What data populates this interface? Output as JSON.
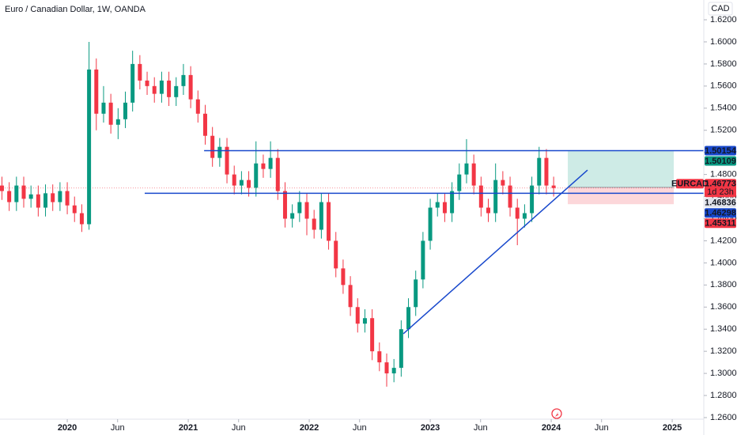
{
  "chart_data": {
    "type": "candlestick",
    "title": "Euro / Canadian Dollar, 1W, OANDA",
    "currency": "CAD",
    "up_color": "#089981",
    "down_color": "#f23645",
    "xlim": [
      2019.444,
      2025.261
    ],
    "ylim": [
      1.25856,
      1.6379
    ],
    "xticks": [
      2020,
      {
        "value": 2020.416,
        "label": "Jun"
      },
      2021,
      {
        "value": 2021.416,
        "label": "Jun"
      },
      2022,
      {
        "value": 2022.416,
        "label": "Jun"
      },
      2023,
      {
        "value": 2023.416,
        "label": "Jun"
      },
      2024,
      {
        "value": 2024.416,
        "label": "Jun"
      },
      2025
    ],
    "yticks": [
      {
        "value": 1.26,
        "label": "1.26000"
      },
      {
        "value": 1.28,
        "label": "1.28000"
      },
      {
        "value": 1.3,
        "label": "1.30000"
      },
      {
        "value": 1.32,
        "label": "1.32000"
      },
      {
        "value": 1.34,
        "label": "1.34000"
      },
      {
        "value": 1.36,
        "label": "1.36000"
      },
      {
        "value": 1.38,
        "label": "1.38000"
      },
      {
        "value": 1.4,
        "label": "1.40000"
      },
      {
        "value": 1.42,
        "label": "1.42000"
      },
      {
        "value": 1.44,
        "label": "1.44000"
      },
      {
        "value": 1.46,
        "label": "1.46000"
      },
      {
        "value": 1.48,
        "label": "1.48000"
      },
      {
        "value": 1.5,
        "label": "1.50000"
      },
      {
        "value": 1.52,
        "label": "1.52000"
      },
      {
        "value": 1.54,
        "label": "1.54000"
      },
      {
        "value": 1.56,
        "label": "1.56000"
      },
      {
        "value": 1.58,
        "label": "1.58000"
      },
      {
        "value": 1.6,
        "label": "1.60000"
      },
      {
        "value": 1.62,
        "label": "1.62000"
      }
    ],
    "x": [
      2019.46,
      2019.52,
      2019.58,
      2019.64,
      2019.7,
      2019.76,
      2019.82,
      2019.88,
      2019.94,
      2020.0,
      2020.06,
      2020.12,
      2020.18,
      2020.24,
      2020.3,
      2020.36,
      2020.42,
      2020.48,
      2020.54,
      2020.6,
      2020.66,
      2020.72,
      2020.78,
      2020.84,
      2020.9,
      2020.96,
      2021.02,
      2021.08,
      2021.14,
      2021.2,
      2021.26,
      2021.32,
      2021.38,
      2021.44,
      2021.5,
      2021.56,
      2021.62,
      2021.68,
      2021.74,
      2021.8,
      2021.86,
      2021.92,
      2021.98,
      2022.04,
      2022.1,
      2022.16,
      2022.22,
      2022.28,
      2022.34,
      2022.4,
      2022.46,
      2022.52,
      2022.58,
      2022.64,
      2022.7,
      2022.76,
      2022.82,
      2022.88,
      2022.94,
      2023.0,
      2023.06,
      2023.12,
      2023.18,
      2023.24,
      2023.3,
      2023.36,
      2023.42,
      2023.48,
      2023.54,
      2023.6,
      2023.66,
      2023.72,
      2023.78,
      2023.84,
      2023.9,
      2023.96,
      2024.02
    ],
    "open": [
      1.47,
      1.465,
      1.455,
      1.47,
      1.458,
      1.462,
      1.45,
      1.463,
      1.455,
      1.465,
      1.452,
      1.445,
      1.435,
      1.575,
      1.535,
      1.545,
      1.525,
      1.53,
      1.545,
      1.58,
      1.565,
      1.56,
      1.553,
      1.565,
      1.55,
      1.56,
      1.57,
      1.548,
      1.535,
      1.515,
      1.495,
      1.505,
      1.48,
      1.47,
      1.475,
      1.468,
      1.49,
      1.485,
      1.495,
      1.465,
      1.44,
      1.445,
      1.455,
      1.44,
      1.43,
      1.455,
      1.42,
      1.395,
      1.38,
      1.36,
      1.345,
      1.35,
      1.32,
      1.31,
      1.3,
      1.305,
      1.34,
      1.36,
      1.385,
      1.42,
      1.45,
      1.455,
      1.445,
      1.465,
      1.48,
      1.49,
      1.47,
      1.45,
      1.445,
      1.475,
      1.47,
      1.45,
      1.44,
      1.445,
      1.47,
      1.495,
      1.47
    ],
    "high": [
      1.478,
      1.473,
      1.478,
      1.478,
      1.47,
      1.47,
      1.471,
      1.471,
      1.473,
      1.473,
      1.46,
      1.453,
      1.6,
      1.585,
      1.56,
      1.553,
      1.54,
      1.555,
      1.592,
      1.588,
      1.573,
      1.568,
      1.573,
      1.573,
      1.568,
      1.58,
      1.578,
      1.556,
      1.543,
      1.523,
      1.513,
      1.513,
      1.488,
      1.483,
      1.483,
      1.51,
      1.498,
      1.51,
      1.503,
      1.473,
      1.453,
      1.465,
      1.463,
      1.448,
      1.463,
      1.463,
      1.428,
      1.403,
      1.388,
      1.368,
      1.358,
      1.358,
      1.328,
      1.318,
      1.313,
      1.348,
      1.368,
      1.393,
      1.428,
      1.458,
      1.463,
      1.463,
      1.473,
      1.49,
      1.512,
      1.498,
      1.478,
      1.458,
      1.49,
      1.483,
      1.478,
      1.458,
      1.453,
      1.478,
      1.505,
      1.503,
      1.478
    ],
    "low": [
      1.457,
      1.447,
      1.447,
      1.45,
      1.45,
      1.442,
      1.442,
      1.447,
      1.447,
      1.444,
      1.437,
      1.428,
      1.43,
      1.52,
      1.527,
      1.517,
      1.512,
      1.522,
      1.537,
      1.557,
      1.552,
      1.545,
      1.545,
      1.542,
      1.542,
      1.552,
      1.54,
      1.527,
      1.507,
      1.487,
      1.487,
      1.472,
      1.462,
      1.462,
      1.46,
      1.46,
      1.477,
      1.477,
      1.457,
      1.432,
      1.432,
      1.437,
      1.425,
      1.422,
      1.422,
      1.412,
      1.387,
      1.372,
      1.352,
      1.337,
      1.337,
      1.312,
      1.302,
      1.288,
      1.292,
      1.297,
      1.332,
      1.352,
      1.377,
      1.412,
      1.442,
      1.437,
      1.437,
      1.457,
      1.472,
      1.462,
      1.442,
      1.437,
      1.437,
      1.462,
      1.442,
      1.416,
      1.432,
      1.437,
      1.462,
      1.462,
      1.46
    ],
    "close": [
      1.465,
      1.455,
      1.47,
      1.458,
      1.462,
      1.45,
      1.463,
      1.455,
      1.465,
      1.452,
      1.445,
      1.435,
      1.575,
      1.535,
      1.545,
      1.525,
      1.53,
      1.545,
      1.58,
      1.565,
      1.56,
      1.553,
      1.565,
      1.55,
      1.56,
      1.57,
      1.548,
      1.535,
      1.515,
      1.495,
      1.505,
      1.48,
      1.47,
      1.475,
      1.468,
      1.49,
      1.485,
      1.495,
      1.465,
      1.44,
      1.445,
      1.455,
      1.44,
      1.43,
      1.455,
      1.42,
      1.395,
      1.38,
      1.36,
      1.345,
      1.35,
      1.32,
      1.31,
      1.3,
      1.305,
      1.34,
      1.36,
      1.385,
      1.42,
      1.45,
      1.455,
      1.445,
      1.465,
      1.48,
      1.49,
      1.47,
      1.45,
      1.445,
      1.475,
      1.47,
      1.45,
      1.44,
      1.445,
      1.47,
      1.495,
      1.47,
      1.46773
    ],
    "horizontal_lines": [
      {
        "value": 1.50154,
        "start": 2021.131,
        "color": "#1848cc"
      },
      {
        "value": 1.46298,
        "start": 2020.64,
        "color": "#1848cc"
      }
    ],
    "trendline": {
      "x": [
        2022.778,
        2024.3
      ],
      "y": [
        1.3359,
        1.484
      ],
      "color": "#1848cc"
    },
    "position": {
      "x": [
        2024.137,
        2025.013
      ],
      "entry": 1.46836,
      "target": 1.50109,
      "stop": 1.45311
    },
    "last": {
      "symbol": "EURCAD",
      "value": 1.46773,
      "countdown": "1d 23h"
    }
  }
}
